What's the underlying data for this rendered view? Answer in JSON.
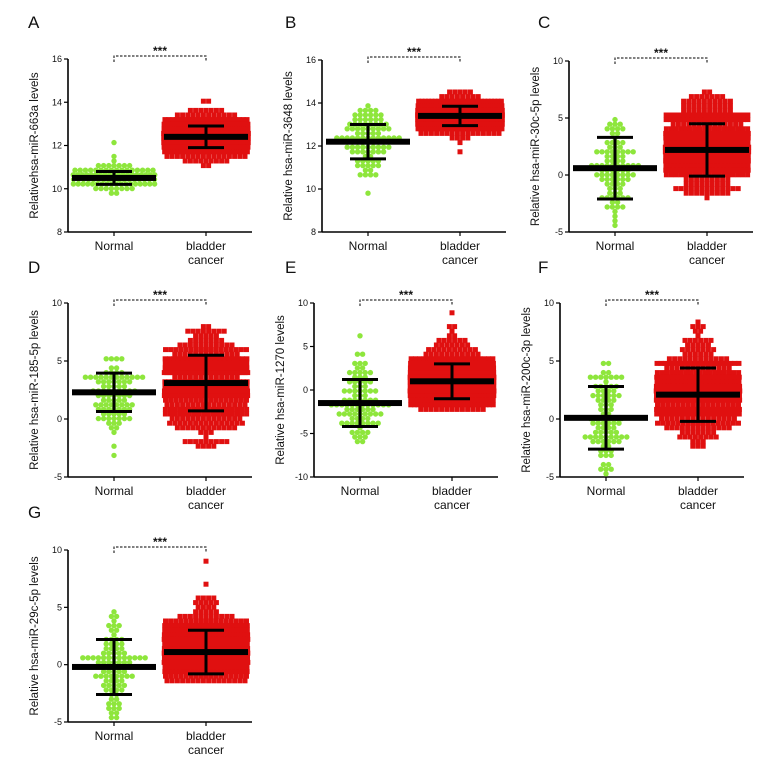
{
  "colors": {
    "normal": "#8ee63c",
    "cancer": "#e01010",
    "summary": "#000000"
  },
  "chart_data": [
    {
      "panel": "A",
      "type": "scatter",
      "ylabel": "Relativehsa-miR-663a levels",
      "ylim": [
        8,
        16
      ],
      "yticks": [
        8,
        10,
        12,
        14,
        16
      ],
      "categories": [
        "Normal",
        "bladder cancer"
      ],
      "significance": "***",
      "groups": [
        {
          "name": "Normal",
          "mean": 10.5,
          "sd": 0.3,
          "min": 9.8,
          "max": 12.1,
          "marker": "circle"
        },
        {
          "name": "bladder cancer",
          "mean": 12.4,
          "sd": 0.5,
          "min": 11.1,
          "max": 14.1,
          "marker": "square"
        }
      ]
    },
    {
      "panel": "B",
      "type": "scatter",
      "ylabel": "Relative hsa-miR-3648 levels",
      "ylim": [
        8,
        16
      ],
      "yticks": [
        8,
        10,
        12,
        14,
        16
      ],
      "categories": [
        "Normal",
        "bladder cancer"
      ],
      "significance": "***",
      "groups": [
        {
          "name": "Normal",
          "mean": 12.2,
          "sd": 0.8,
          "min": 9.8,
          "max": 13.8,
          "marker": "circle"
        },
        {
          "name": "bladder cancer",
          "mean": 13.4,
          "sd": 0.45,
          "min": 11.8,
          "max": 14.5,
          "marker": "square"
        }
      ]
    },
    {
      "panel": "C",
      "type": "scatter",
      "ylabel": "Relative hsa-miR-30c-5p levels",
      "ylim": [
        -5,
        10
      ],
      "yticks": [
        -5,
        0,
        5,
        10
      ],
      "categories": [
        "Normal",
        "bladder cancer"
      ],
      "significance": "***",
      "groups": [
        {
          "name": "Normal",
          "mean": 0.6,
          "sd": 2.7,
          "min": -4.5,
          "max": 4.7,
          "marker": "circle"
        },
        {
          "name": "bladder cancer",
          "mean": 2.2,
          "sd": 2.3,
          "min": -1.8,
          "max": 7.3,
          "marker": "square"
        }
      ]
    },
    {
      "panel": "D",
      "type": "scatter",
      "ylabel": "Relative hsa-miR-185-5p levels",
      "ylim": [
        -5,
        10
      ],
      "yticks": [
        -5,
        0,
        5,
        10
      ],
      "categories": [
        "Normal",
        "bladder cancer"
      ],
      "significance": "***",
      "groups": [
        {
          "name": "Normal",
          "mean": 2.3,
          "sd": 1.65,
          "min": -3.2,
          "max": 5.3,
          "marker": "circle"
        },
        {
          "name": "bladder cancer",
          "mean": 3.1,
          "sd": 2.4,
          "min": -2.4,
          "max": 7.8,
          "marker": "square"
        }
      ]
    },
    {
      "panel": "E",
      "type": "scatter",
      "ylabel": "Relative hsa-miR-1270 levels",
      "ylim": [
        -10,
        10
      ],
      "yticks": [
        -10,
        -5,
        0,
        5,
        10
      ],
      "categories": [
        "Normal",
        "bladder cancer"
      ],
      "significance": "***",
      "groups": [
        {
          "name": "Normal",
          "mean": -1.5,
          "sd": 2.7,
          "min": -6.0,
          "max": 6.0,
          "marker": "circle"
        },
        {
          "name": "bladder cancer",
          "mean": 1.0,
          "sd": 2.0,
          "min": -2.3,
          "max": 9.1,
          "marker": "square"
        }
      ]
    },
    {
      "panel": "F",
      "type": "scatter",
      "ylabel": "Relative hsa-miR-200c-3p levels",
      "ylim": [
        -5,
        10
      ],
      "yticks": [
        -5,
        0,
        5,
        10
      ],
      "categories": [
        "Normal",
        "bladder cancer"
      ],
      "significance": "***",
      "groups": [
        {
          "name": "Normal",
          "mean": 0.1,
          "sd": 2.7,
          "min": -4.6,
          "max": 4.8,
          "marker": "circle"
        },
        {
          "name": "bladder cancer",
          "mean": 2.1,
          "sd": 2.3,
          "min": -2.3,
          "max": 8.2,
          "marker": "square"
        }
      ]
    },
    {
      "panel": "G",
      "type": "scatter",
      "ylabel": "Relative hsa-miR-29c-5p levels",
      "ylim": [
        -5,
        10
      ],
      "yticks": [
        -5,
        0,
        5,
        10
      ],
      "categories": [
        "Normal",
        "bladder cancer"
      ],
      "significance": "***",
      "groups": [
        {
          "name": "Normal",
          "mean": -0.2,
          "sd": 2.4,
          "min": -4.5,
          "max": 4.6,
          "marker": "circle"
        },
        {
          "name": "bladder cancer",
          "mean": 1.1,
          "sd": 1.9,
          "min": -1.5,
          "max": 9.1,
          "marker": "square"
        }
      ]
    }
  ]
}
